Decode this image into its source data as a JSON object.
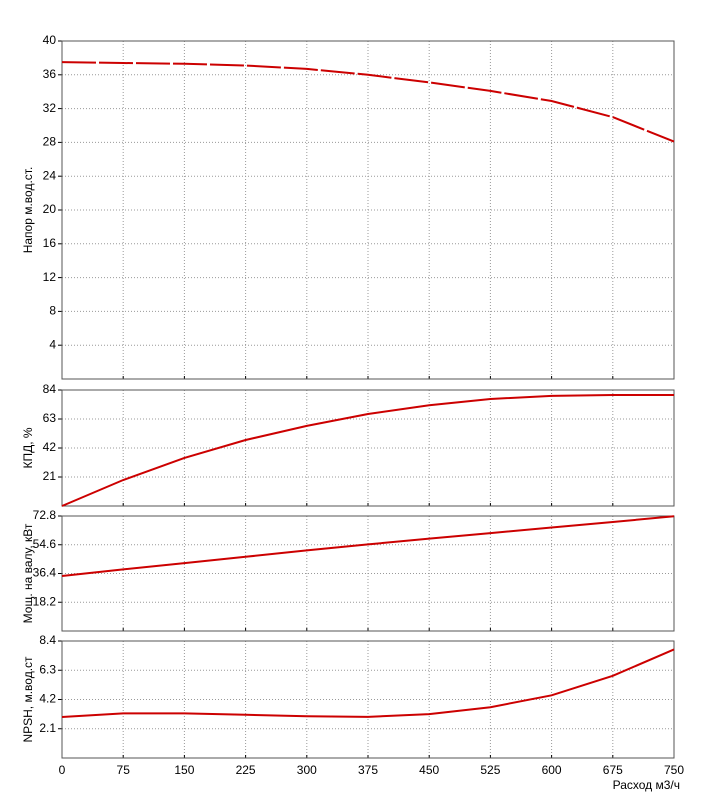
{
  "chart_data": [
    {
      "type": "line",
      "y_label": "Напор м.вод.ст.",
      "x": [
        0,
        75,
        150,
        225,
        300,
        375,
        450,
        525,
        600,
        675,
        750
      ],
      "xlim": [
        0,
        750
      ],
      "xticks": [
        0,
        75,
        150,
        225,
        300,
        375,
        450,
        525,
        600,
        675,
        750
      ],
      "ylim": [
        0,
        40
      ],
      "yticks": [
        4,
        8,
        12,
        16,
        20,
        24,
        28,
        32,
        36,
        40
      ],
      "grid": true,
      "dashed": true,
      "series": [
        {
          "color": "#cc0000",
          "values": [
            37.5,
            37.4,
            37.3,
            37.1,
            36.7,
            36.0,
            35.1,
            34.1,
            32.9,
            31.0,
            28.1
          ]
        }
      ]
    },
    {
      "type": "line",
      "y_label": "КПД, %",
      "x": [
        0,
        75,
        150,
        225,
        300,
        375,
        450,
        525,
        600,
        675,
        750
      ],
      "xlim": [
        0,
        750
      ],
      "xticks": [
        0,
        75,
        150,
        225,
        300,
        375,
        450,
        525,
        600,
        675,
        750
      ],
      "ylim": [
        0,
        84
      ],
      "yticks": [
        21,
        42,
        63,
        84
      ],
      "grid": true,
      "dashed": false,
      "series": [
        {
          "color": "#cc0000",
          "values": [
            0,
            18.8,
            34.8,
            47.8,
            58,
            66.6,
            73,
            77.5,
            79.7,
            80.4,
            80.4
          ]
        }
      ]
    },
    {
      "type": "line",
      "y_label": "Мощ. на валу, кВт",
      "x": [
        0,
        75,
        150,
        225,
        300,
        375,
        450,
        525,
        600,
        675,
        750
      ],
      "xlim": [
        0,
        750
      ],
      "xticks": [
        0,
        75,
        150,
        225,
        300,
        375,
        450,
        525,
        600,
        675,
        750
      ],
      "ylim": [
        0,
        72.8
      ],
      "yticks": [
        18.2,
        36.4,
        54.6,
        72.8
      ],
      "grid": true,
      "dashed": false,
      "series": [
        {
          "color": "#cc0000",
          "values": [
            34.8,
            39,
            43,
            47,
            51,
            54.8,
            58.5,
            62,
            65.5,
            69,
            72.6
          ]
        }
      ]
    },
    {
      "type": "line",
      "y_label": "NPSH, м.вод.ст",
      "x_label": "Расход м3/ч",
      "x": [
        0,
        75,
        150,
        225,
        300,
        375,
        450,
        525,
        600,
        675,
        750
      ],
      "xlim": [
        0,
        750
      ],
      "xticks": [
        0,
        75,
        150,
        225,
        300,
        375,
        450,
        525,
        600,
        675,
        750
      ],
      "ylim": [
        0,
        8.4
      ],
      "yticks": [
        2.1,
        4.2,
        6.3,
        8.4
      ],
      "grid": true,
      "dashed": false,
      "series": [
        {
          "color": "#cc0000",
          "values": [
            2.94,
            3.2,
            3.2,
            3.1,
            3.0,
            2.95,
            3.15,
            3.65,
            4.5,
            5.9,
            7.8
          ]
        }
      ]
    }
  ]
}
